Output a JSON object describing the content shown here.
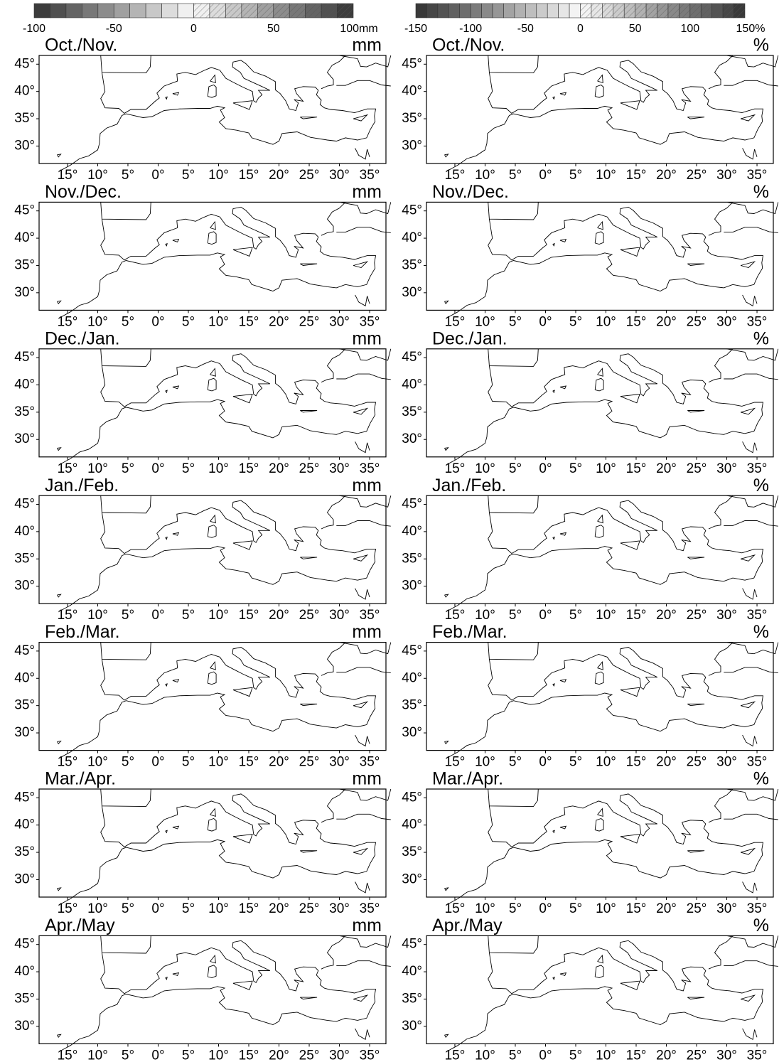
{
  "colorbars": [
    {
      "labels": [
        "-100",
        "-50",
        "0",
        "50",
        "100mm"
      ]
    },
    {
      "labels": [
        "-150",
        "-100",
        "-50",
        "0",
        "50",
        "100",
        "150%"
      ]
    }
  ],
  "rows": [
    {
      "left": {
        "title": "Oct./Nov.",
        "unit": "mm"
      },
      "right": {
        "title": "Oct./Nov.",
        "unit": "%"
      }
    },
    {
      "left": {
        "title": "Nov./Dec.",
        "unit": "mm"
      },
      "right": {
        "title": "Nov./Dec.",
        "unit": "%"
      }
    },
    {
      "left": {
        "title": "Dec./Jan.",
        "unit": "mm"
      },
      "right": {
        "title": "Dec./Jan.",
        "unit": "%"
      }
    },
    {
      "left": {
        "title": "Jan./Feb.",
        "unit": "mm"
      },
      "right": {
        "title": "Jan./Feb.",
        "unit": "%"
      }
    },
    {
      "left": {
        "title": "Feb./Mar.",
        "unit": "mm"
      },
      "right": {
        "title": "Feb./Mar.",
        "unit": "%"
      }
    },
    {
      "left": {
        "title": "Mar./Apr.",
        "unit": "mm"
      },
      "right": {
        "title": "Mar./Apr.",
        "unit": "%"
      }
    },
    {
      "left": {
        "title": "Apr./May",
        "unit": "mm"
      },
      "right": {
        "title": "Apr./May",
        "unit": "%"
      }
    }
  ],
  "lat_labels": [
    "45°",
    "40°",
    "35°",
    "30°"
  ],
  "lon_labels": [
    "15°",
    "10°",
    "5°",
    "0°",
    "5°",
    "10°",
    "15°",
    "20°",
    "25°",
    "30°",
    "35°"
  ]
}
